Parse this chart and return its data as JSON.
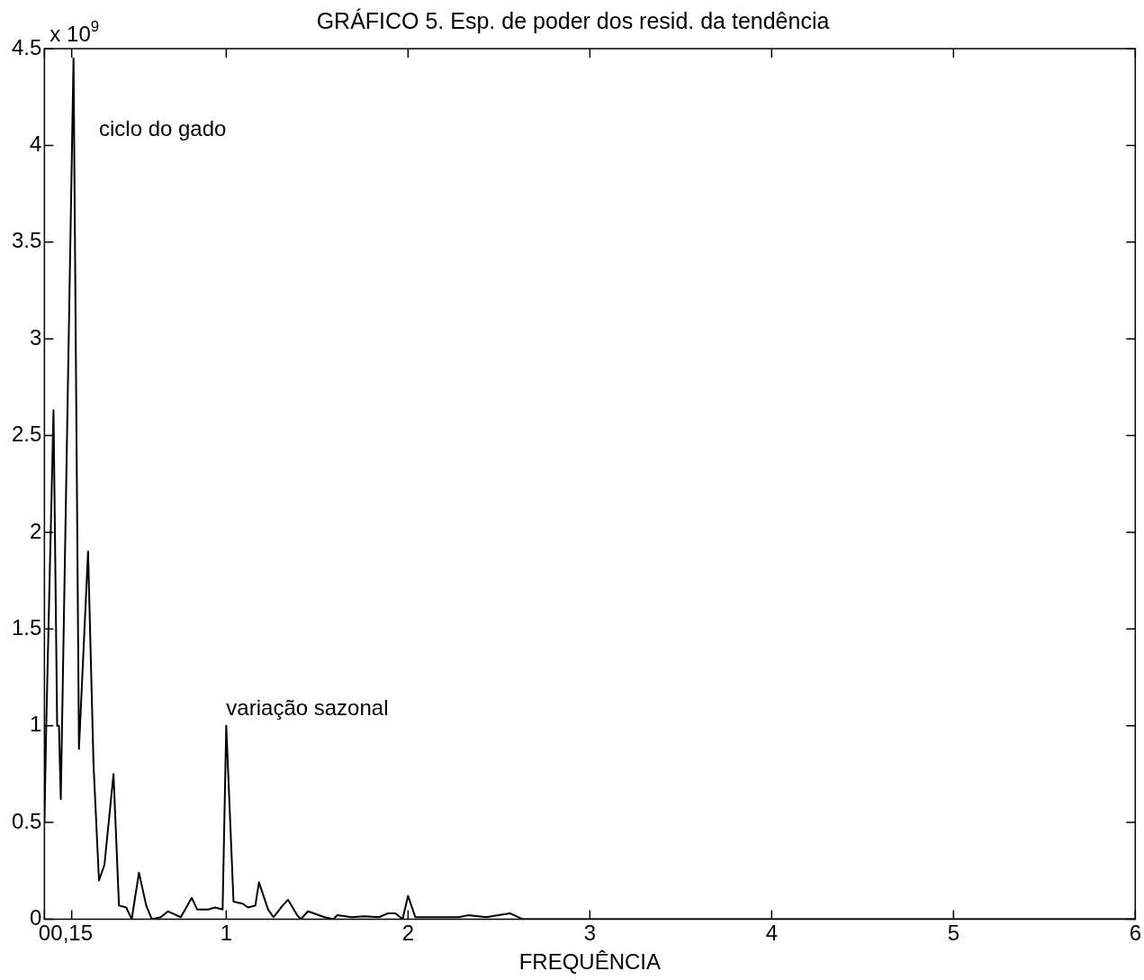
{
  "chart_data": {
    "type": "line",
    "title": "GRÁFICO 5. Esp. de poder dos resid. da tendência",
    "xlabel": "FREQUÊNCIA",
    "x": [
      0,
      0.01,
      0.05,
      0.07,
      0.08,
      0.09,
      0.16,
      0.19,
      0.24,
      0.27,
      0.3,
      0.33,
      0.38,
      0.41,
      0.45,
      0.48,
      0.52,
      0.56,
      0.59,
      0.64,
      0.68,
      0.75,
      0.81,
      0.84,
      0.9,
      0.94,
      0.98,
      1.0,
      1.04,
      1.09,
      1.12,
      1.16,
      1.18,
      1.23,
      1.26,
      1.31,
      1.34,
      1.39,
      1.41,
      1.45,
      1.54,
      1.59,
      1.61,
      1.69,
      1.76,
      1.84,
      1.89,
      1.93,
      1.97,
      2.0,
      2.04,
      2.28,
      2.33,
      2.43,
      2.56,
      2.63,
      6
    ],
    "series": [
      {
        "color": "#000000",
        "values": [
          0.5,
          1.0,
          2.63,
          1.0,
          1.0,
          0.62,
          4.45,
          0.88,
          1.9,
          0.8,
          0.2,
          0.28,
          0.75,
          0.07,
          0.06,
          0,
          0.24,
          0.07,
          0,
          0.01,
          0.04,
          0.01,
          0.11,
          0.05,
          0.05,
          0.06,
          0.05,
          1.0,
          0.09,
          0.08,
          0.06,
          0.07,
          0.19,
          0.05,
          0.01,
          0.07,
          0.1,
          0.02,
          0,
          0.04,
          0.01,
          0,
          0.02,
          0.01,
          0.015,
          0.01,
          0.03,
          0.03,
          0,
          0.12,
          0.01,
          0.01,
          0.02,
          0.01,
          0.03,
          0,
          0
        ]
      }
    ],
    "xlim": [
      0,
      6
    ],
    "xticks": [
      0,
      {
        "value": 0.15,
        "label": "0,15"
      },
      1,
      2,
      3,
      4,
      5,
      6
    ],
    "ylim": [
      0,
      4.5
    ],
    "yticks": [
      0,
      0.5,
      1,
      1.5,
      2,
      2.5,
      3,
      3.5,
      4,
      4.5
    ],
    "grid": false,
    "legend": false,
    "marker": "none",
    "line_style": "solid",
    "annotations": [
      "x 10$^{9}$",
      "ciclo do gado",
      {
        "text": "variação sazonal",
        "x": 1.0,
        "y": 1.0
      }
    ]
  }
}
